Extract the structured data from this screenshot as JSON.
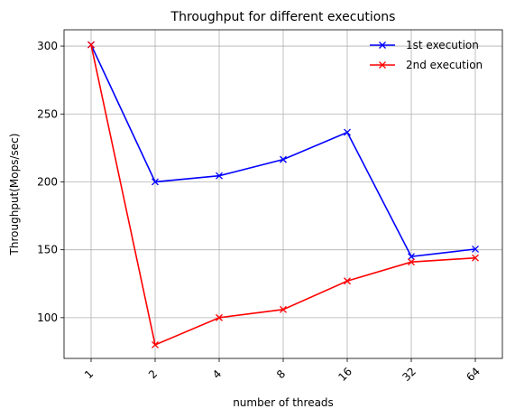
{
  "chart_data": {
    "type": "line",
    "title": "Throughput for different executions",
    "xlabel": "number of threads",
    "ylabel": "Throughput(Mops/sec)",
    "categories": [
      "1",
      "2",
      "4",
      "8",
      "16",
      "32",
      "64"
    ],
    "ylim": [
      70,
      312
    ],
    "yticks": [
      100,
      150,
      200,
      250,
      300
    ],
    "grid": true,
    "legend_position": "top-right",
    "series": [
      {
        "name": "1st execution",
        "color": "#0000ff",
        "marker": "x",
        "values": [
          301,
          200,
          204.5,
          216.5,
          236.5,
          145,
          150.5
        ]
      },
      {
        "name": "2nd execution",
        "color": "#ff0000",
        "marker": "x",
        "values": [
          301,
          80,
          100,
          106,
          127,
          141,
          144
        ]
      }
    ]
  }
}
